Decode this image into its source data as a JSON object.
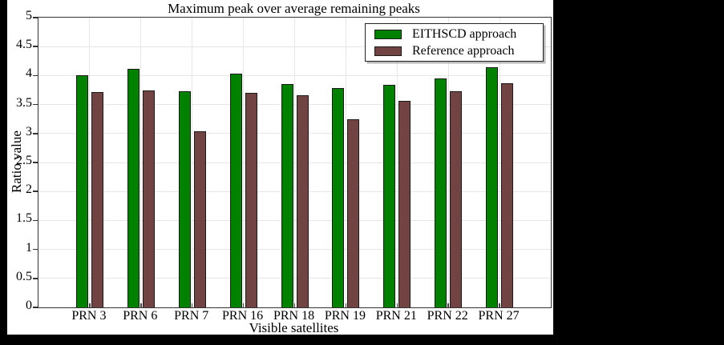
{
  "window": {
    "background_color": "#000000",
    "figure_background_color": "#ffffff"
  },
  "chart_data": {
    "type": "bar",
    "title": "Maximum peak over average remaining peaks",
    "xlabel": "Visible satellites",
    "ylabel": "Ratio value",
    "categories": [
      "PRN 3",
      "PRN 6",
      "PRN 7",
      "PRN 16",
      "PRN 18",
      "PRN 19",
      "PRN 21",
      "PRN 22",
      "PRN 27"
    ],
    "series": [
      {
        "name": "EITHSCD approach",
        "color": "#008200",
        "values": [
          4.0,
          4.11,
          3.73,
          4.04,
          3.85,
          3.78,
          3.84,
          3.95,
          4.14
        ]
      },
      {
        "name": "Reference approach",
        "color": "#714343",
        "values": [
          3.72,
          3.75,
          3.04,
          3.7,
          3.66,
          3.24,
          3.57,
          3.73,
          3.87
        ]
      }
    ],
    "ylim": [
      0,
      5
    ],
    "yticks": [
      0,
      0.5,
      1,
      1.5,
      2,
      2.5,
      3,
      3.5,
      4,
      4.5,
      5
    ],
    "grid": true,
    "legend_position": "top-right",
    "styles": {
      "bar_edge_color": "#1a1a1a",
      "grid_color": "#e6e6e6",
      "axis_color": "#333333",
      "tick_color": "#444444"
    }
  }
}
